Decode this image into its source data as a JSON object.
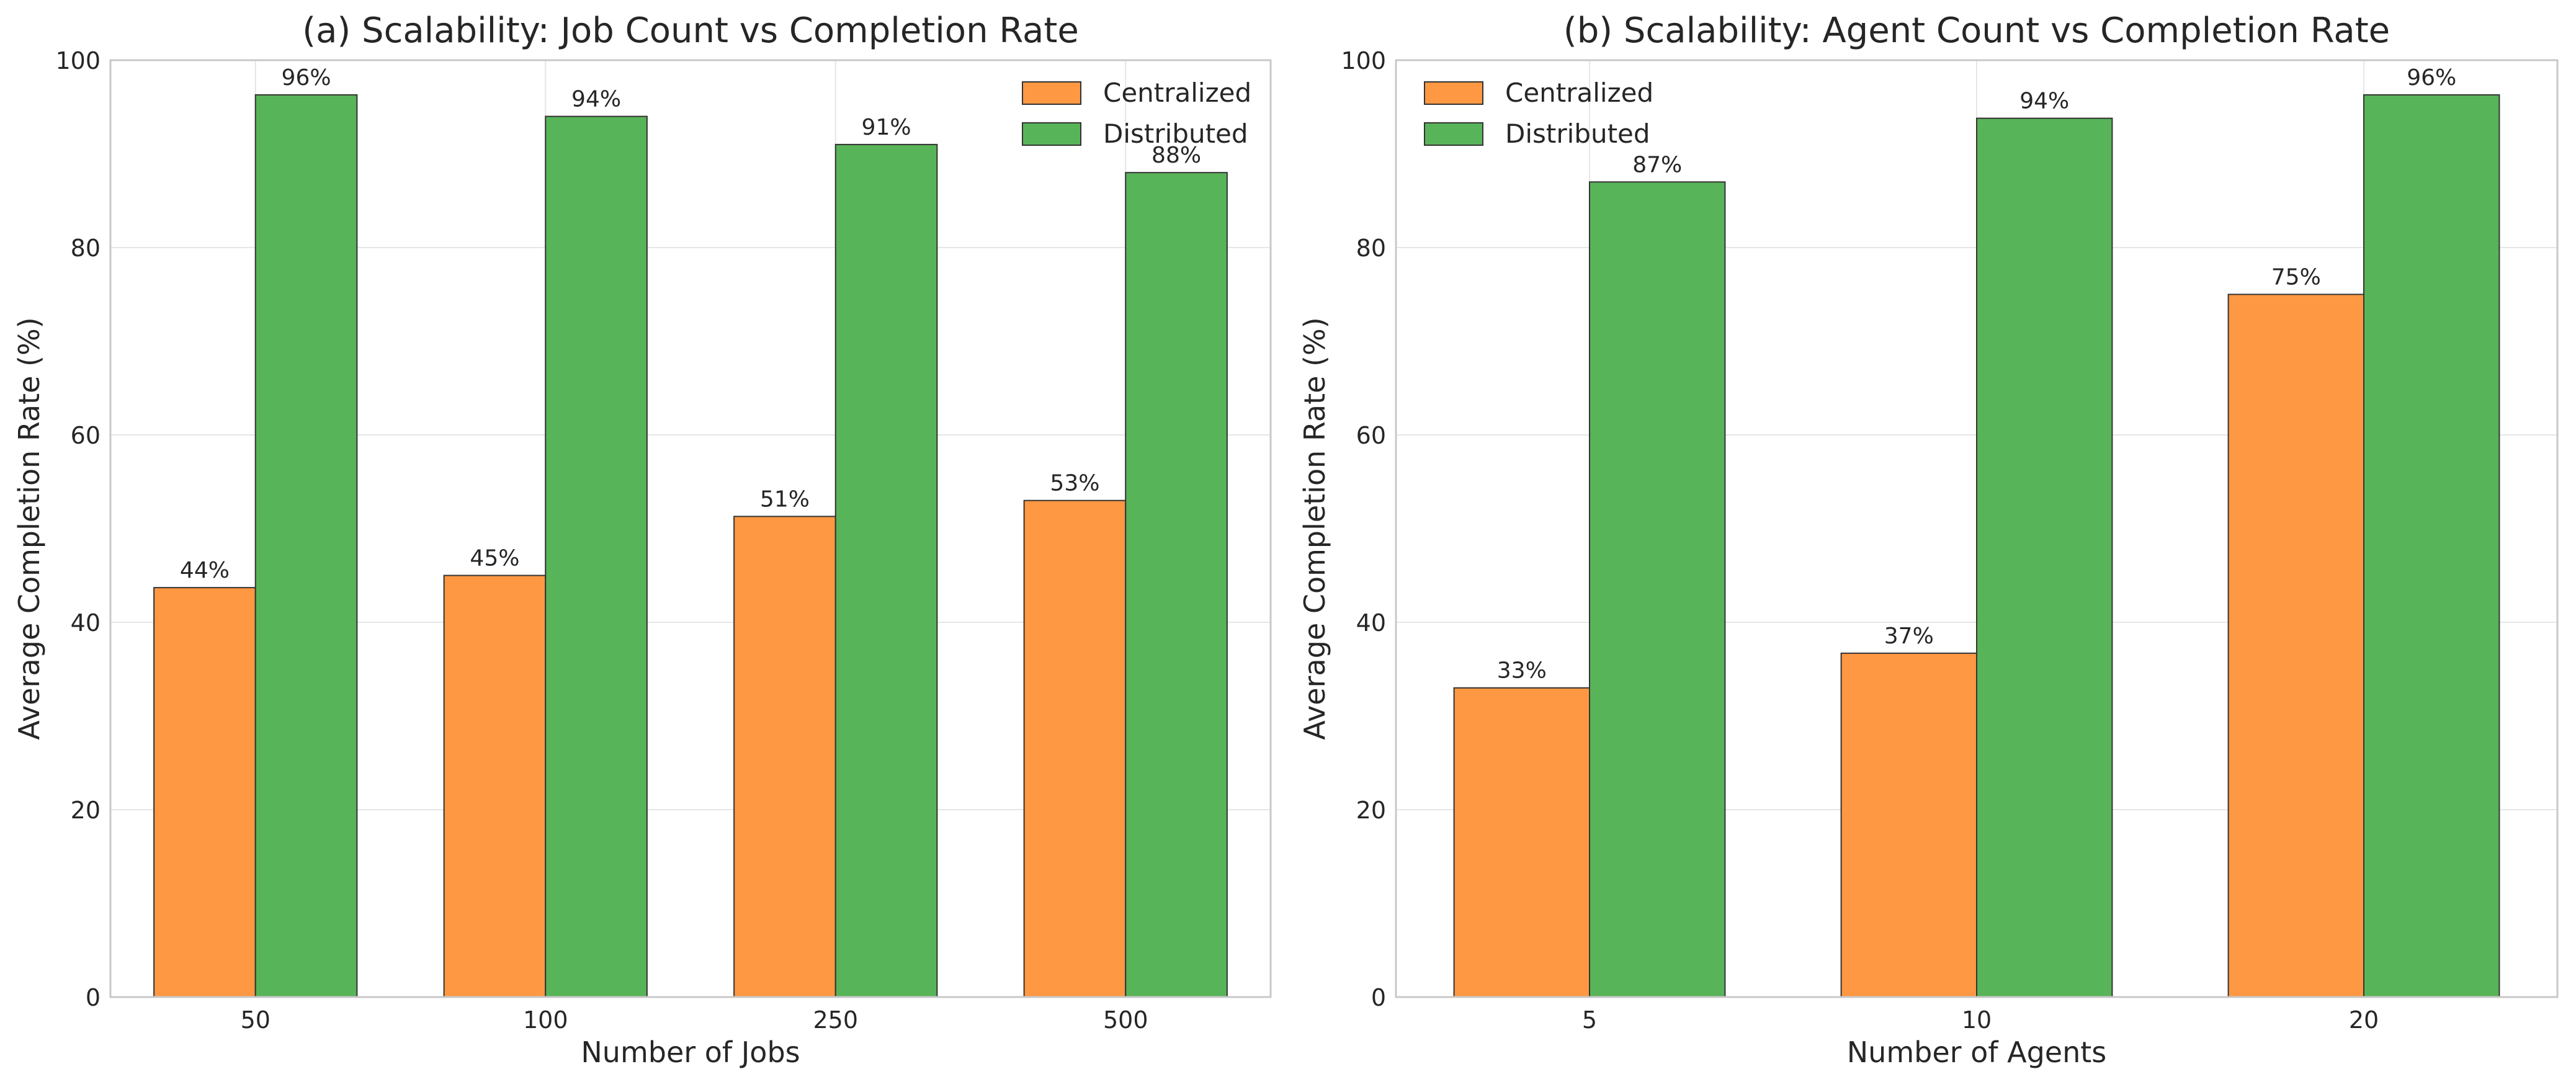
{
  "colors": {
    "centralized": "#ff9843",
    "distributed": "#58b458",
    "edge": "#333333",
    "grid": "#e6e6e6",
    "spine": "#c8c8c8",
    "text": "#262626"
  },
  "chart_data": [
    {
      "type": "bar",
      "title": "(a) Scalability: Job Count vs Completion Rate",
      "xlabel": "Number of Jobs",
      "ylabel": "Average Completion Rate (%)",
      "ylim": [
        0,
        100
      ],
      "yticks": [
        "0",
        "20",
        "40",
        "60",
        "80",
        "100"
      ],
      "grid": true,
      "legend_position": "top-right",
      "categories": [
        "50",
        "100",
        "250",
        "500"
      ],
      "series": [
        {
          "name": "Centralized",
          "color_key": "centralized",
          "values": [
            43.7,
            45.0,
            51.3,
            53.0
          ],
          "labels": [
            "44%",
            "45%",
            "51%",
            "53%"
          ]
        },
        {
          "name": "Distributed",
          "color_key": "distributed",
          "values": [
            96.3,
            94.0,
            91.0,
            88.0
          ],
          "labels": [
            "96%",
            "94%",
            "91%",
            "88%"
          ]
        }
      ]
    },
    {
      "type": "bar",
      "title": "(b) Scalability: Agent Count vs Completion Rate",
      "xlabel": "Number of Agents",
      "ylabel": "Average Completion Rate (%)",
      "ylim": [
        0,
        100
      ],
      "yticks": [
        "0",
        "20",
        "40",
        "60",
        "80",
        "100"
      ],
      "grid": true,
      "legend_position": "top-left",
      "categories": [
        "5",
        "10",
        "20"
      ],
      "series": [
        {
          "name": "Centralized",
          "color_key": "centralized",
          "values": [
            33.0,
            36.7,
            75.0
          ],
          "labels": [
            "33%",
            "37%",
            "75%"
          ]
        },
        {
          "name": "Distributed",
          "color_key": "distributed",
          "values": [
            87.0,
            93.8,
            96.3
          ],
          "labels": [
            "87%",
            "94%",
            "96%"
          ]
        }
      ]
    }
  ]
}
